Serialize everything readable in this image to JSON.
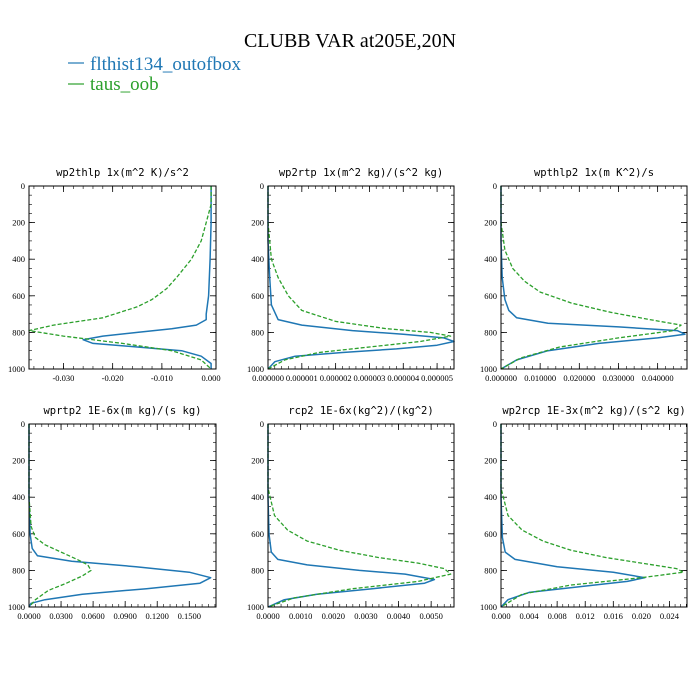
{
  "figure": {
    "title": "CLUBB VAR at205E,20N",
    "legend": [
      {
        "name": "flthist134_outofbox",
        "color": "#1f77b4",
        "style": "solid"
      },
      {
        "name": "taus_oob",
        "color": "#2ca02c",
        "style": "dashed"
      }
    ]
  },
  "chart_data": [
    {
      "type": "line",
      "title": "wp2thlp  1x(m^2 K)/s^2",
      "xlim": [
        -0.037,
        0.001
      ],
      "ylim": [
        1000,
        0
      ],
      "xticks": [
        -0.03,
        -0.02,
        -0.01,
        0.0
      ],
      "xtick_labels": [
        "-0.030",
        "-0.020",
        "-0.010",
        "0.000"
      ],
      "yticks": [
        0,
        200,
        400,
        600,
        800,
        1000
      ],
      "ytick_labels": [
        "0",
        "200",
        "400",
        "600",
        "800",
        "1000"
      ],
      "series": [
        {
          "name": "flthist134_outofbox",
          "x": [
            0.0,
            0.0,
            -0.0002,
            -0.0005,
            -0.001,
            -0.001,
            -0.003,
            -0.008,
            -0.015,
            -0.022,
            -0.026,
            -0.024,
            -0.015,
            -0.006,
            -0.002,
            0.0,
            0.0
          ],
          "y": [
            0,
            200,
            400,
            600,
            700,
            730,
            760,
            780,
            800,
            820,
            840,
            860,
            880,
            900,
            930,
            970,
            1000
          ]
        },
        {
          "name": "taus_oob",
          "x": [
            0.0,
            0.0,
            -0.001,
            -0.002,
            -0.004,
            -0.007,
            -0.009,
            -0.012,
            -0.015,
            -0.022,
            -0.032,
            -0.037,
            -0.03,
            -0.018,
            -0.008,
            -0.002,
            0.0
          ],
          "y": [
            0,
            100,
            200,
            300,
            400,
            500,
            560,
            620,
            660,
            720,
            760,
            790,
            820,
            860,
            900,
            950,
            1000
          ]
        }
      ]
    },
    {
      "type": "line",
      "title": "wp2rtp  1x(m^2 kg)/(s^2 kg)",
      "xlim": [
        0.0,
        5.5e-06
      ],
      "ylim": [
        1000,
        0
      ],
      "xticks": [
        0.0,
        1e-06,
        2e-06,
        3e-06,
        4e-06,
        5e-06
      ],
      "xtick_labels": [
        "0.000000",
        "0.000001",
        "0.000002",
        "0.000003",
        "0.000004",
        "0.000005"
      ],
      "yticks": [
        0,
        200,
        400,
        600,
        800,
        1000
      ],
      "ytick_labels": [
        "0",
        "200",
        "400",
        "600",
        "800",
        "1000"
      ],
      "series": [
        {
          "name": "flthist134_outofbox",
          "x": [
            0.0,
            0.0,
            5e-08,
            1e-07,
            3e-07,
            1e-06,
            2.5e-06,
            4e-06,
            5.2e-06,
            5.5e-06,
            5e-06,
            3.8e-06,
            2.2e-06,
            8e-07,
            2e-07,
            0.0
          ],
          "y": [
            0,
            300,
            500,
            650,
            730,
            760,
            790,
            810,
            830,
            850,
            870,
            890,
            910,
            930,
            960,
            1000
          ]
        },
        {
          "name": "taus_oob",
          "x": [
            0.0,
            0.0,
            1e-07,
            3e-07,
            6e-07,
            1e-06,
            2e-06,
            3.5e-06,
            4.8e-06,
            5.4e-06,
            4.5e-06,
            3e-06,
            1.5e-06,
            5e-07,
            0.0
          ],
          "y": [
            0,
            200,
            400,
            500,
            600,
            680,
            740,
            780,
            800,
            820,
            850,
            880,
            910,
            950,
            1000
          ]
        }
      ]
    },
    {
      "type": "line",
      "title": "wpthlp2  1x(m K^2)/s",
      "xlim": [
        0.0,
        0.0475
      ],
      "ylim": [
        1000,
        0
      ],
      "xticks": [
        0.0,
        0.01,
        0.02,
        0.03,
        0.04
      ],
      "xtick_labels": [
        "0.000000",
        "0.010000",
        "0.020000",
        "0.030000",
        "0.040000"
      ],
      "yticks": [
        0,
        200,
        400,
        600,
        800,
        1000
      ],
      "ytick_labels": [
        "0",
        "200",
        "400",
        "600",
        "800",
        "1000"
      ],
      "series": [
        {
          "name": "flthist134_outofbox",
          "x": [
            0.0,
            0.0,
            0.0003,
            0.001,
            0.002,
            0.004,
            0.012,
            0.03,
            0.045,
            0.047,
            0.04,
            0.025,
            0.012,
            0.004,
            0.0
          ],
          "y": [
            0,
            300,
            500,
            620,
            680,
            720,
            750,
            770,
            790,
            810,
            830,
            860,
            900,
            950,
            1000
          ]
        },
        {
          "name": "taus_oob",
          "x": [
            0.0,
            0.0,
            0.001,
            0.003,
            0.006,
            0.01,
            0.018,
            0.028,
            0.038,
            0.046,
            0.044,
            0.03,
            0.015,
            0.005,
            0.0
          ],
          "y": [
            0,
            200,
            350,
            450,
            520,
            580,
            640,
            690,
            730,
            760,
            790,
            830,
            880,
            940,
            1000
          ]
        }
      ]
    },
    {
      "type": "line",
      "title": "wprtp2  1E-6x(m kg)/(s kg)",
      "xlim": [
        0.0,
        0.175
      ],
      "ylim": [
        1000,
        0
      ],
      "xticks": [
        0.0,
        0.03,
        0.06,
        0.09,
        0.12,
        0.15
      ],
      "xtick_labels": [
        "0.0000",
        "0.0300",
        "0.0600",
        "0.0900",
        "0.1200",
        "0.1500"
      ],
      "yticks": [
        0,
        200,
        400,
        600,
        800,
        1000
      ],
      "ytick_labels": [
        "0",
        "200",
        "400",
        "600",
        "800",
        "1000"
      ],
      "series": [
        {
          "name": "flthist134_outofbox",
          "x": [
            0.0,
            0.0,
            0.001,
            0.003,
            0.008,
            0.04,
            0.1,
            0.15,
            0.17,
            0.16,
            0.11,
            0.05,
            0.015,
            0.002,
            0.0
          ],
          "y": [
            0,
            400,
            600,
            680,
            720,
            750,
            780,
            810,
            840,
            870,
            900,
            930,
            960,
            980,
            1000
          ]
        },
        {
          "name": "taus_oob",
          "x": [
            0.0,
            0.0,
            0.002,
            0.006,
            0.015,
            0.03,
            0.045,
            0.055,
            0.058,
            0.05,
            0.035,
            0.018,
            0.006,
            0.0
          ],
          "y": [
            0,
            400,
            560,
            620,
            660,
            700,
            740,
            770,
            800,
            830,
            870,
            910,
            960,
            1000
          ]
        }
      ]
    },
    {
      "type": "line",
      "title": "rcp2  1E-6x(kg^2)/(kg^2)",
      "xlim": [
        0.0,
        0.0057
      ],
      "ylim": [
        1000,
        0
      ],
      "xticks": [
        0.0,
        0.001,
        0.002,
        0.003,
        0.004,
        0.005
      ],
      "xtick_labels": [
        "0.0000",
        "0.0010",
        "0.0020",
        "0.0030",
        "0.0040",
        "0.0050"
      ],
      "yticks": [
        0,
        200,
        400,
        600,
        800,
        1000
      ],
      "ytick_labels": [
        "0",
        "200",
        "400",
        "600",
        "800",
        "1000"
      ],
      "series": [
        {
          "name": "flthist134_outofbox",
          "x": [
            0.0,
            0.0,
            3e-05,
            0.0001,
            0.0003,
            0.0012,
            0.0028,
            0.0042,
            0.0051,
            0.0048,
            0.0032,
            0.0015,
            0.0005,
            0.0
          ],
          "y": [
            0,
            400,
            600,
            700,
            740,
            770,
            800,
            820,
            850,
            870,
            900,
            930,
            960,
            1000
          ]
        },
        {
          "name": "taus_oob",
          "x": [
            0.0,
            0.0,
            0.0002,
            0.0006,
            0.0012,
            0.0022,
            0.0034,
            0.0046,
            0.0054,
            0.0056,
            0.0046,
            0.0026,
            0.0008,
            0.0
          ],
          "y": [
            0,
            350,
            500,
            580,
            640,
            690,
            730,
            760,
            790,
            820,
            860,
            900,
            950,
            1000
          ]
        }
      ]
    },
    {
      "type": "line",
      "title": "wp2rcp  1E-3x(m^2 kg)/(s^2 kg)",
      "xlim": [
        0.0,
        0.0265
      ],
      "ylim": [
        1000,
        0
      ],
      "xticks": [
        0.0,
        0.004,
        0.008,
        0.012,
        0.016,
        0.02,
        0.024
      ],
      "xtick_labels": [
        "0.000",
        "0.004",
        "0.008",
        "0.012",
        "0.016",
        "0.020",
        "0.024"
      ],
      "yticks": [
        0,
        200,
        400,
        600,
        800,
        1000
      ],
      "ytick_labels": [
        "0",
        "200",
        "400",
        "600",
        "800",
        "1000"
      ],
      "series": [
        {
          "name": "flthist134_outofbox",
          "x": [
            0.0,
            0.0,
            0.0002,
            0.0006,
            0.002,
            0.008,
            0.016,
            0.0205,
            0.018,
            0.011,
            0.004,
            0.001,
            0.0
          ],
          "y": [
            0,
            400,
            620,
            700,
            740,
            780,
            810,
            840,
            860,
            890,
            920,
            960,
            1000
          ]
        },
        {
          "name": "taus_oob",
          "x": [
            0.0,
            0.0,
            0.001,
            0.003,
            0.006,
            0.01,
            0.015,
            0.02,
            0.025,
            0.026,
            0.02,
            0.01,
            0.003,
            0.0
          ],
          "y": [
            0,
            350,
            500,
            580,
            640,
            690,
            730,
            760,
            790,
            810,
            840,
            880,
            930,
            1000
          ]
        }
      ]
    }
  ]
}
